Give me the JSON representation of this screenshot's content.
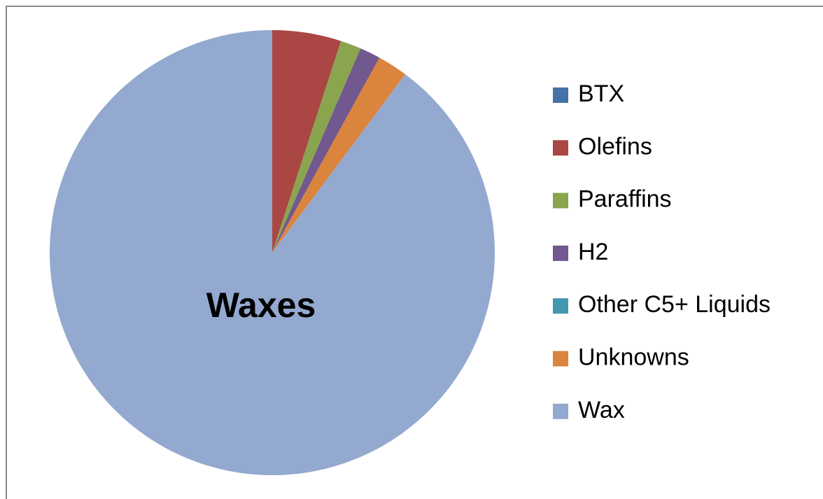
{
  "chart_data": {
    "type": "pie",
    "annotation": "Waxes",
    "categories": [
      "BTX",
      "Olefins",
      "Paraffins",
      "H2",
      "Other C5+ Liquids",
      "Unknowns",
      "Wax"
    ],
    "values": [
      0,
      5,
      1.5,
      1.5,
      0,
      2.2,
      89.8
    ],
    "colors": [
      "#4572a7",
      "#aa4643",
      "#89a54e",
      "#71588f",
      "#4198af",
      "#db843d",
      "#93a9cf"
    ],
    "legend": "right"
  }
}
